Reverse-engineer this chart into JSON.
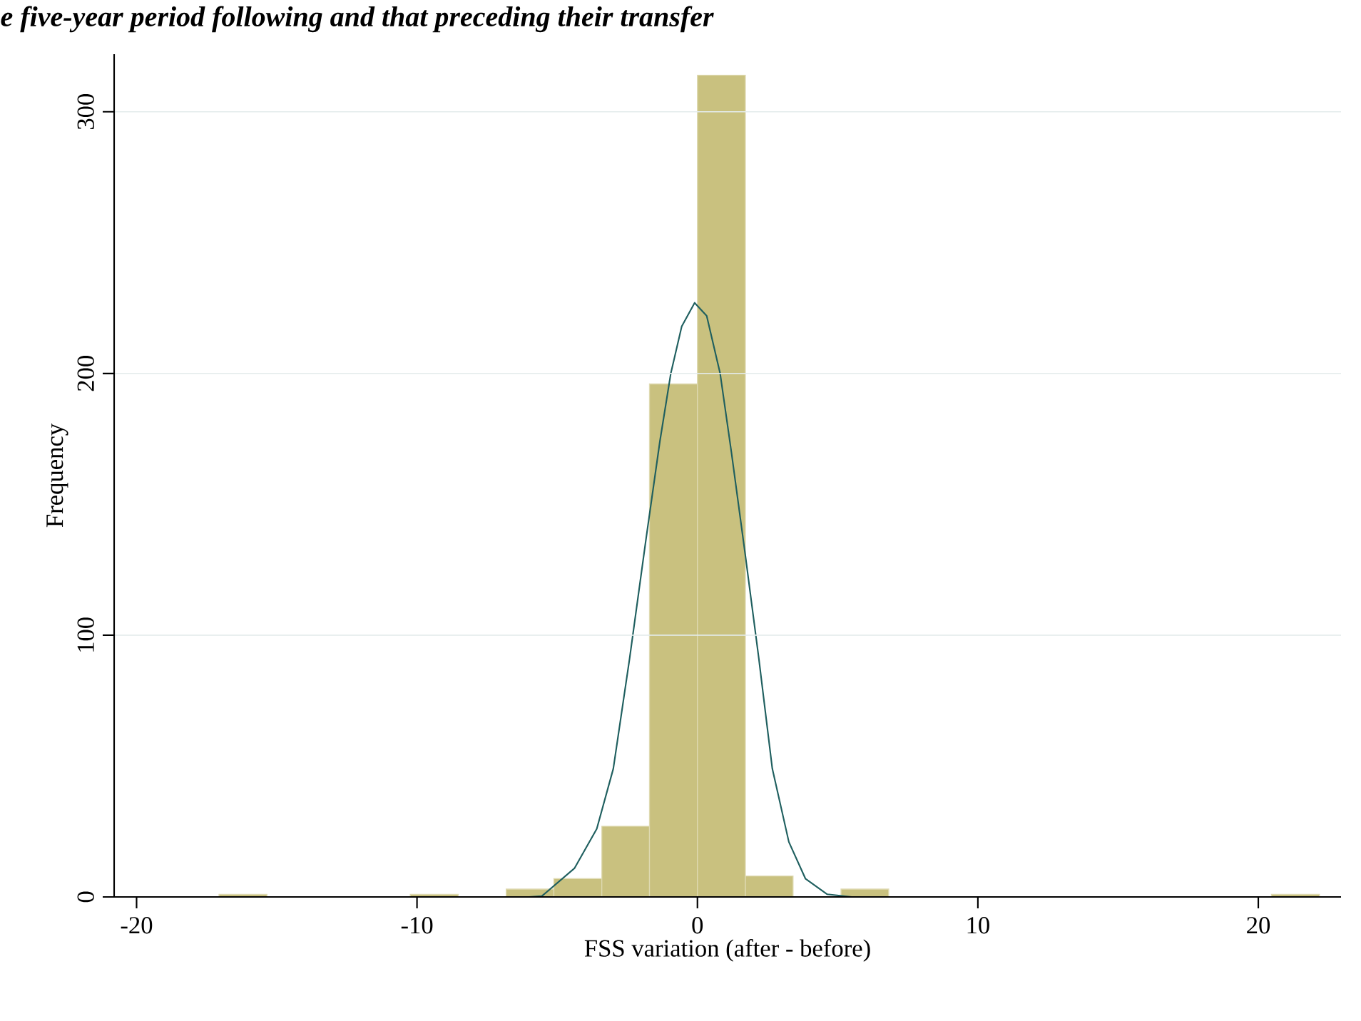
{
  "chart_data": {
    "type": "histogram",
    "title": "e five-year period following and that preceding their transfer",
    "xlabel": "FSS variation (after - before)",
    "ylabel": "Frequency",
    "bins": [
      -17.06,
      -15.35,
      -13.65,
      -11.94,
      -10.24,
      -8.53,
      -6.82,
      -5.12,
      -3.41,
      -1.71,
      0,
      1.71,
      3.41,
      5.12,
      6.82,
      8.53,
      10.24,
      11.94,
      13.65,
      15.35,
      17.06,
      18.77,
      20.47,
      22.18
    ],
    "values": [
      1,
      0,
      0,
      0,
      1,
      0,
      3,
      7,
      27,
      196,
      314,
      8,
      0,
      3,
      0,
      0,
      0,
      0,
      0,
      0,
      0,
      0,
      1
    ],
    "color": "#c9c17f",
    "series": [
      {
        "type": "line",
        "color": "#1f5f5f",
        "x": [
          -6.0,
          -5.55,
          -4.38,
          -3.59,
          -3.0,
          -2.42,
          -1.83,
          -1.34,
          -0.95,
          -0.56,
          -0.1,
          0.33,
          0.81,
          1.21,
          1.69,
          2.19,
          2.67,
          3.26,
          3.85,
          4.63,
          5.5
        ],
        "values": [
          0,
          0.3,
          11,
          26,
          49,
          91,
          137,
          174,
          200,
          218,
          227,
          222,
          200,
          170,
          132,
          91,
          49,
          21,
          7,
          1,
          0
        ]
      }
    ],
    "xlim": [
      -20.8,
      22.95
    ],
    "ylim": [
      0,
      322
    ],
    "xticks": [
      -20,
      -10,
      0,
      10,
      20
    ],
    "yticks": [
      0,
      100,
      200,
      300
    ],
    "grid": "y"
  }
}
